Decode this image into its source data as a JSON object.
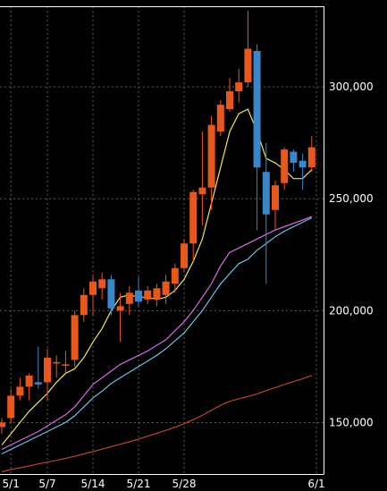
{
  "chart_data": {
    "type": "candlestick",
    "x_ticks": [
      "5/1",
      "5/7",
      "5/14",
      "5/21",
      "5/28",
      "6/1"
    ],
    "y_ticks": [
      "150,000",
      "200,000",
      "250,000",
      "300,000"
    ],
    "y_tick_values": [
      150000,
      200000,
      250000,
      300000
    ],
    "ylim": [
      127000,
      336000
    ],
    "grid": true,
    "colors": {
      "background": "#000000",
      "up": "#e8581c",
      "down": "#3a86c8",
      "grid": "#5a5a5a",
      "axis": "#ffffff",
      "ma5": "#f2e35a",
      "ma20": "#d66be8",
      "ma25": "#6ec3e6",
      "ma75": "#b8432e"
    },
    "candles": [
      {
        "date": "4/30",
        "open": 148000,
        "high": 152000,
        "low": 145000,
        "close": 150000
      },
      {
        "date": "5/1",
        "open": 152000,
        "high": 165000,
        "low": 150000,
        "close": 162000
      },
      {
        "date": "5/2",
        "open": 162000,
        "high": 170000,
        "low": 160000,
        "close": 166000
      },
      {
        "date": "5/3",
        "open": 166000,
        "high": 172000,
        "low": 160000,
        "close": 171000
      },
      {
        "date": "5/6",
        "open": 168000,
        "high": 184000,
        "low": 165000,
        "close": 167000
      },
      {
        "date": "5/7",
        "open": 168000,
        "high": 183000,
        "low": 160000,
        "close": 179000
      },
      {
        "date": "5/8",
        "open": 177000,
        "high": 180000,
        "low": 170000,
        "close": 177000
      },
      {
        "date": "5/9",
        "open": 176000,
        "high": 182000,
        "low": 172000,
        "close": 176000
      },
      {
        "date": "5/10",
        "open": 178000,
        "high": 200000,
        "low": 175000,
        "close": 198000
      },
      {
        "date": "5/13",
        "open": 198000,
        "high": 210000,
        "low": 195000,
        "close": 207000
      },
      {
        "date": "5/14",
        "open": 207000,
        "high": 216000,
        "low": 198000,
        "close": 213000
      },
      {
        "date": "5/15",
        "open": 210000,
        "high": 217000,
        "low": 205000,
        "close": 214000
      },
      {
        "date": "5/16",
        "open": 214000,
        "high": 216000,
        "low": 198000,
        "close": 201000
      },
      {
        "date": "5/17",
        "open": 200000,
        "high": 208000,
        "low": 186000,
        "close": 202000
      },
      {
        "date": "5/20",
        "open": 203000,
        "high": 211000,
        "low": 198000,
        "close": 208000
      },
      {
        "date": "5/21",
        "open": 209000,
        "high": 215000,
        "low": 202000,
        "close": 204000
      },
      {
        "date": "5/22",
        "open": 205000,
        "high": 211000,
        "low": 203000,
        "close": 209000
      },
      {
        "date": "5/23",
        "open": 205000,
        "high": 212000,
        "low": 202000,
        "close": 210000
      },
      {
        "date": "5/24",
        "open": 207000,
        "high": 216000,
        "low": 203000,
        "close": 213000
      },
      {
        "date": "5/27",
        "open": 212000,
        "high": 221000,
        "low": 208000,
        "close": 219000
      },
      {
        "date": "5/28",
        "open": 219000,
        "high": 232000,
        "low": 217000,
        "close": 230000
      },
      {
        "date": "5/29",
        "open": 230000,
        "high": 254000,
        "low": 222000,
        "close": 253000
      },
      {
        "date": "5/30",
        "open": 252000,
        "high": 280000,
        "low": 238000,
        "close": 255000
      },
      {
        "date": "5/31",
        "open": 255000,
        "high": 287000,
        "low": 245000,
        "close": 283000
      },
      {
        "date": "6/3",
        "open": 280000,
        "high": 294000,
        "low": 278000,
        "close": 292000
      },
      {
        "date": "6/4",
        "open": 290000,
        "high": 304000,
        "low": 289000,
        "close": 298000
      },
      {
        "date": "6/5",
        "open": 298000,
        "high": 308000,
        "low": 293000,
        "close": 302000
      },
      {
        "date": "6/6",
        "open": 302000,
        "high": 334000,
        "low": 300000,
        "close": 317000
      },
      {
        "date": "6/7",
        "open": 316000,
        "high": 319000,
        "low": 236000,
        "close": 264000
      },
      {
        "date": "6/10",
        "open": 262000,
        "high": 275000,
        "low": 212000,
        "close": 243000
      },
      {
        "date": "6/11",
        "open": 245000,
        "high": 258000,
        "low": 236000,
        "close": 256000
      },
      {
        "date": "6/12",
        "open": 257000,
        "high": 273000,
        "low": 254000,
        "close": 272000
      },
      {
        "date": "6/13",
        "open": 271000,
        "high": 272000,
        "low": 262000,
        "close": 266000
      },
      {
        "date": "6/14",
        "open": 267000,
        "high": 270000,
        "low": 254000,
        "close": 264000
      },
      {
        "date": "6/17",
        "open": 264000,
        "high": 278000,
        "low": 262000,
        "close": 273000
      }
    ],
    "series": [
      {
        "key": "ma5",
        "values": [
          140000,
          145000,
          150000,
          155000,
          159000,
          163000,
          168000,
          172000,
          174000,
          179000,
          186000,
          192000,
          200000,
          206000,
          207000,
          206000,
          206000,
          205000,
          206000,
          209000,
          214000,
          222000,
          232000,
          248000,
          264000,
          280000,
          288000,
          290000,
          280000,
          268000,
          266000,
          263000,
          259000,
          259000,
          263000
        ]
      },
      {
        "key": "ma20",
        "values": [
          138000,
          140000,
          142000,
          144000,
          146000,
          148500,
          151000,
          153500,
          157000,
          162000,
          167000,
          170000,
          173000,
          176000,
          178000,
          180000,
          182000,
          184500,
          187000,
          191000,
          195000,
          200000,
          206000,
          212000,
          220000,
          226000,
          228000,
          230000,
          232000,
          234000,
          236000,
          237500,
          239000,
          240500,
          242000
        ]
      },
      {
        "key": "ma25",
        "values": [
          136000,
          138000,
          140000,
          142000,
          144000,
          146000,
          148000,
          150000,
          153000,
          157000,
          161000,
          164000,
          167500,
          170000,
          172500,
          175000,
          177500,
          180000,
          183000,
          186500,
          190000,
          195000,
          200000,
          206000,
          212000,
          216500,
          221000,
          223000,
          227000,
          230000,
          233000,
          235500,
          237500,
          239500,
          241500
        ]
      },
      {
        "key": "ma75",
        "values": [
          128000,
          129000,
          129800,
          130600,
          131500,
          132300,
          133100,
          134000,
          134900,
          136000,
          137000,
          138100,
          139200,
          140300,
          141400,
          142600,
          143900,
          145200,
          146500,
          147900,
          149500,
          151300,
          153200,
          155500,
          157700,
          159500,
          160600,
          161600,
          162800,
          164300,
          165600,
          167000,
          168300,
          169600,
          171000
        ]
      }
    ]
  }
}
